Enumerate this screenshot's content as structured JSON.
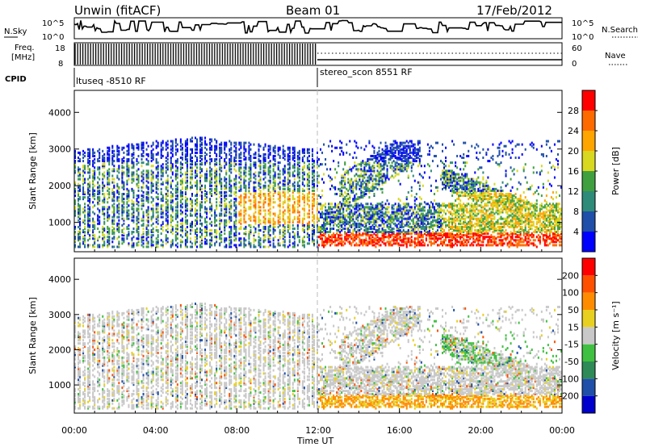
{
  "header": {
    "station": "Unwin (fitACF)",
    "beam": "Beam 01",
    "date": "17/Feb/2012"
  },
  "strip_labels": {
    "nsky": "N.Sky",
    "nsky_ticks": [
      "10^5",
      "10^0"
    ],
    "nsearch": "N.Search",
    "nsearch_ticks": [
      "10^5",
      "10^0"
    ],
    "freq_line1": "Freq.",
    "freq_line2": "[MHz]",
    "freq_ticks": [
      "18",
      "8"
    ],
    "nave": "Nave",
    "nave_ticks": [
      "60",
      "0"
    ],
    "cpid": "CPID",
    "program_1": "ltuseq -8510 RF",
    "program_2": "stereo_scon 8551 RF"
  },
  "chart_data": [
    {
      "type": "heatmap",
      "name": "power-panel",
      "ylabel": "Slant Range [km]",
      "yticks": [
        "1000",
        "2000",
        "3000",
        "4000"
      ],
      "ylim": [
        200,
        4600
      ],
      "colorbar": {
        "label": "Power [dB]",
        "ticks": [
          "4",
          "8",
          "12",
          "16",
          "20",
          "24",
          "28"
        ],
        "colors": [
          "#0000ff",
          "#1f4fa8",
          "#2e8b7a",
          "#40a040",
          "#d8d820",
          "#ffa500",
          "#ff6a00",
          "#ff0000"
        ]
      }
    },
    {
      "type": "heatmap",
      "name": "velocity-panel",
      "ylabel": "Slant Range [km]",
      "yticks": [
        "1000",
        "2000",
        "3000",
        "4000"
      ],
      "ylim": [
        200,
        4600
      ],
      "colorbar": {
        "label": "Velocity [m s⁻¹]",
        "ticks": [
          "200",
          "100",
          "50",
          "15",
          "-15",
          "-50",
          "-100",
          "-200"
        ],
        "colors": [
          "#0000cc",
          "#1f4fa8",
          "#2e8b57",
          "#40c040",
          "#c8c8c8",
          "#e8d020",
          "#ff8c00",
          "#ff5000",
          "#ff0000"
        ]
      }
    }
  ],
  "xaxis": {
    "ticks": [
      "00:00",
      "04:00",
      "08:00",
      "12:00",
      "16:00",
      "20:00",
      "00:00"
    ],
    "label": "Time UT",
    "xlim_hours": [
      0,
      24
    ],
    "program_change_hour": 12
  }
}
